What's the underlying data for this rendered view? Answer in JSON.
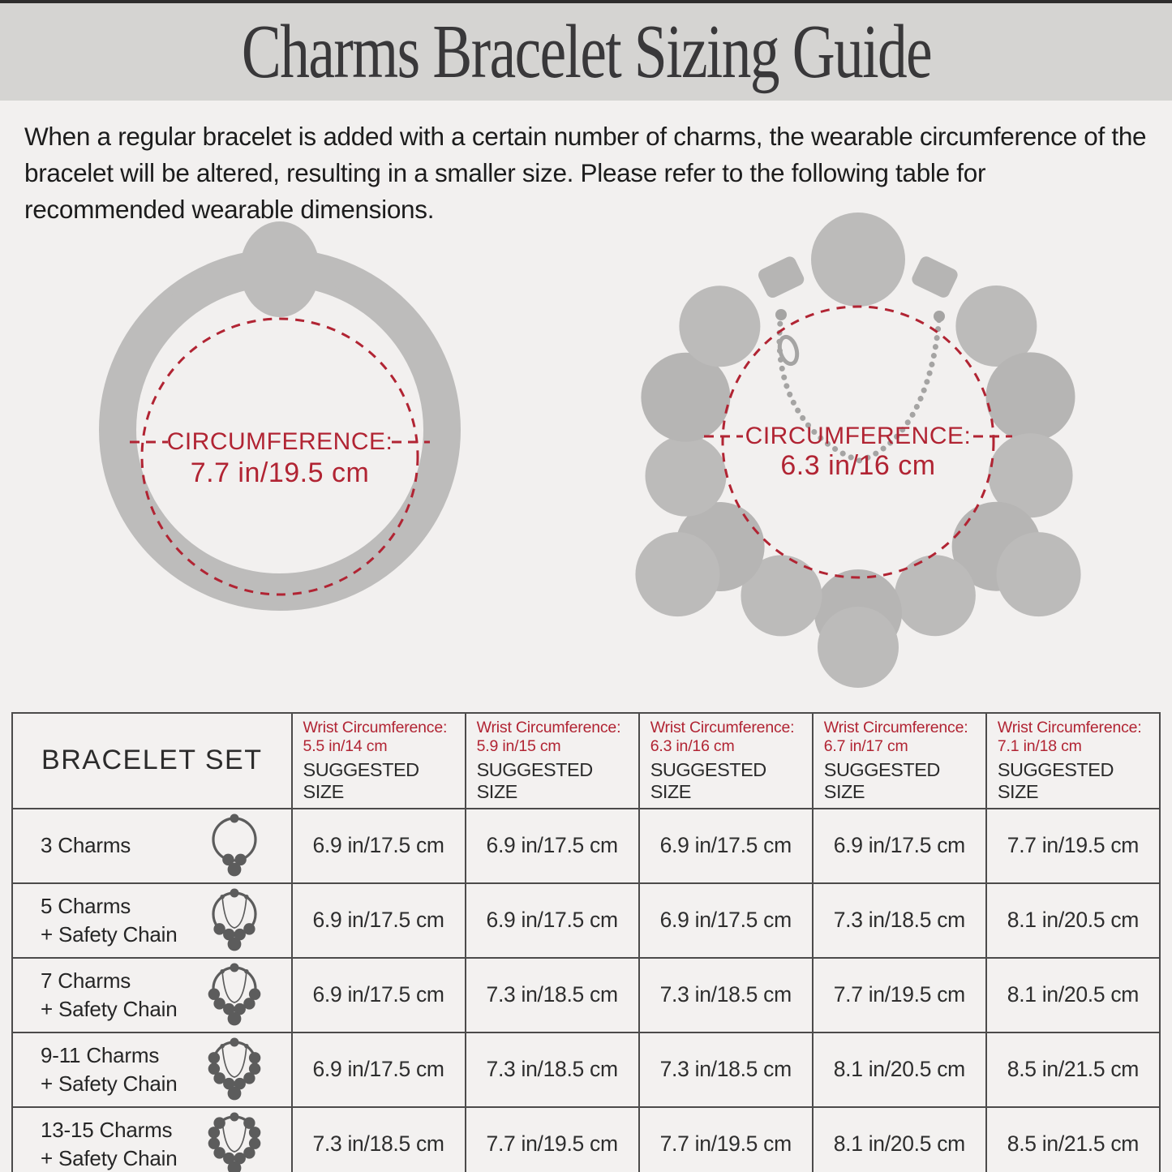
{
  "colors": {
    "accent_red": "#b12433",
    "band_gray": "#d5d4d2",
    "page_bg": "#f2f0ef",
    "bracelet_gray": "#bdbcbb",
    "icon_gray": "#5c5c5c"
  },
  "header": {
    "title": "Charms Bracelet Sizing Guide"
  },
  "intro": {
    "text": "When a regular bracelet is added with a certain number of charms, the wearable circumference of the bracelet will be altered, resulting in a smaller size. Please refer to the following table for recommended wearable dimensions."
  },
  "figures": {
    "plain_bracelet": {
      "label_line1": "CIRCUMFERENCE:",
      "label_line2": "7.7 in/19.5 cm"
    },
    "charm_bracelet": {
      "label_line1": "CIRCUMFERENCE:",
      "label_line2": "6.3 in/16 cm"
    }
  },
  "table": {
    "set_header": "BRACELET SET",
    "columns": [
      {
        "wrist_line1": "Wrist Circumference:",
        "wrist_line2": "5.5 in/14 cm",
        "suggested": "SUGGESTED SIZE"
      },
      {
        "wrist_line1": "Wrist Circumference:",
        "wrist_line2": "5.9 in/15 cm",
        "suggested": "SUGGESTED SIZE"
      },
      {
        "wrist_line1": "Wrist Circumference:",
        "wrist_line2": "6.3 in/16 cm",
        "suggested": "SUGGESTED SIZE"
      },
      {
        "wrist_line1": "Wrist Circumference:",
        "wrist_line2": "6.7 in/17 cm",
        "suggested": "SUGGESTED SIZE"
      },
      {
        "wrist_line1": "Wrist Circumference:",
        "wrist_line2": "7.1 in/18 cm",
        "suggested": "SUGGESTED SIZE"
      }
    ],
    "rows": [
      {
        "label_line1": "3 Charms",
        "label_line2": "",
        "icon": {
          "beads": 2,
          "chain": false
        },
        "values": [
          "6.9 in/17.5 cm",
          "6.9 in/17.5 cm",
          "6.9 in/17.5 cm",
          "6.9 in/17.5 cm",
          "7.7 in/19.5 cm"
        ]
      },
      {
        "label_line1": "5 Charms",
        "label_line2": "+ Safety Chain",
        "icon": {
          "beads": 4,
          "chain": true
        },
        "values": [
          "6.9 in/17.5 cm",
          "6.9 in/17.5 cm",
          "6.9 in/17.5 cm",
          "7.3 in/18.5 cm",
          "8.1 in/20.5 cm"
        ]
      },
      {
        "label_line1": "7 Charms",
        "label_line2": "+ Safety Chain",
        "icon": {
          "beads": 6,
          "chain": true
        },
        "values": [
          "6.9 in/17.5 cm",
          "7.3 in/18.5 cm",
          "7.3 in/18.5 cm",
          "7.7 in/19.5 cm",
          "8.1 in/20.5 cm"
        ]
      },
      {
        "label_line1": "9-11 Charms",
        "label_line2": "+ Safety Chain",
        "icon": {
          "beads": 8,
          "chain": true
        },
        "values": [
          "6.9 in/17.5 cm",
          "7.3 in/18.5 cm",
          "7.3 in/18.5 cm",
          "8.1 in/20.5 cm",
          "8.5 in/21.5 cm"
        ]
      },
      {
        "label_line1": "13-15 Charms",
        "label_line2": "+ Safety Chain",
        "icon": {
          "beads": 10,
          "chain": true
        },
        "values": [
          "7.3 in/18.5 cm",
          "7.7 in/19.5 cm",
          "7.7 in/19.5 cm",
          "8.1 in/20.5 cm",
          "8.5 in/21.5 cm"
        ]
      }
    ]
  }
}
